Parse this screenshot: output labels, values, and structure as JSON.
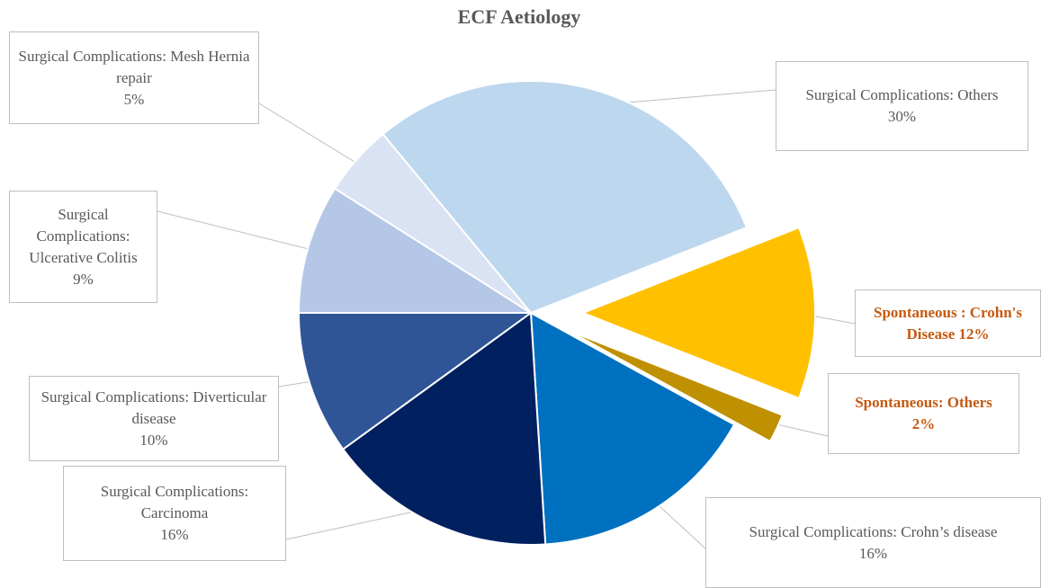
{
  "chart_data": {
    "type": "pie",
    "title": "ECF Aetiology",
    "categories": [
      "Surgical Complications: Others",
      "Spontaneous : Crohn's Disease",
      "Spontaneous: Others",
      "Surgical Complications: Crohn’s disease",
      "Surgical Complications: Carcinoma",
      "Surgical Complications: Diverticular disease",
      "Surgical Complications: Ulcerative Colitis",
      "Surgical Complications: Mesh Hernia repair"
    ],
    "values": [
      30,
      12,
      2,
      16,
      16,
      10,
      9,
      5
    ],
    "value_labels": [
      "30%",
      "12%",
      "2%",
      "16%",
      "16%",
      "10%",
      "9%",
      "5%"
    ],
    "colors": [
      "#bdd7ee",
      "#ffc000",
      "#bf9000",
      "#0070c0",
      "#002060",
      "#2f5597",
      "#b4c7e7",
      "#dae3f3"
    ],
    "label_colors": [
      "#595959",
      "#c55a11",
      "#c55a11",
      "#595959",
      "#595959",
      "#595959",
      "#595959",
      "#595959"
    ],
    "exploded": [
      false,
      true,
      true,
      false,
      false,
      false,
      false,
      false
    ]
  }
}
